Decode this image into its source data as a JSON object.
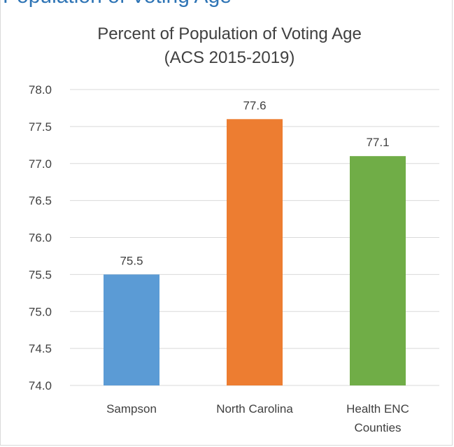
{
  "heading_fragment": "Population of Voting Age",
  "chart_data": {
    "type": "bar",
    "title": "Percent of Population of Voting Age",
    "subtitle": "(ACS 2015-2019)",
    "categories": [
      {
        "lines": [
          "Sampson"
        ]
      },
      {
        "lines": [
          "North Carolina"
        ]
      },
      {
        "lines": [
          "Health ENC",
          "Counties"
        ]
      }
    ],
    "values": [
      75.5,
      77.6,
      77.1
    ],
    "value_labels": [
      "75.5",
      "77.6",
      "77.1"
    ],
    "colors": [
      "#5b9bd5",
      "#ed7d31",
      "#70ad47"
    ],
    "ylim": [
      74.0,
      78.0
    ],
    "yticks": [
      "74.0",
      "74.5",
      "75.0",
      "75.5",
      "76.0",
      "76.5",
      "77.0",
      "77.5",
      "78.0"
    ],
    "gridlines": true,
    "legend": "none"
  }
}
